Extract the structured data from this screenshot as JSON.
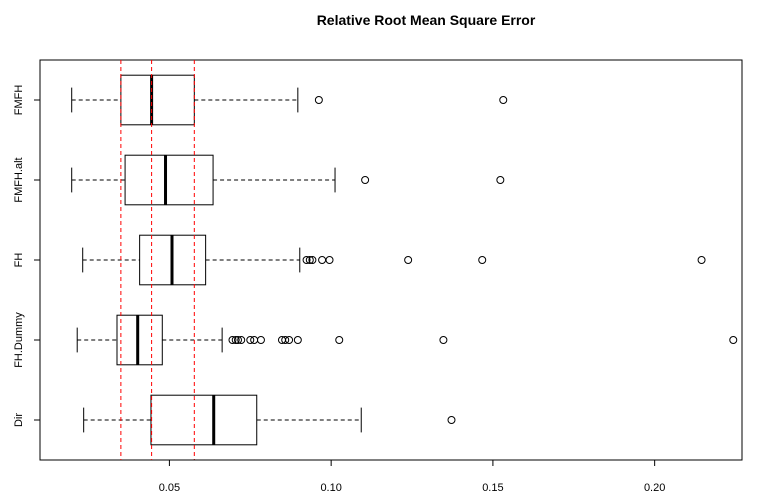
{
  "chart_data": {
    "type": "boxplot",
    "orientation": "horizontal",
    "title": "Relative Root Mean Square Error",
    "xlabel": "",
    "ylabel": "",
    "xlim": [
      0.01,
      0.227
    ],
    "x_ticks": [
      0.05,
      0.1,
      0.15,
      0.2
    ],
    "x_tick_labels": [
      "0.05",
      "0.10",
      "0.15",
      "0.20"
    ],
    "categories": [
      "Dir",
      "FH.Dummy",
      "FH",
      "FMFH.alt",
      "FMFH"
    ],
    "series": [
      {
        "name": "Dir",
        "whisker_low": 0.0235,
        "q1": 0.0443,
        "median": 0.0637,
        "q3": 0.077,
        "whisker_high": 0.1093,
        "outliers": [
          0.1372
        ]
      },
      {
        "name": "FH.Dummy",
        "whisker_low": 0.0215,
        "q1": 0.0338,
        "median": 0.0402,
        "q3": 0.0478,
        "whisker_high": 0.0663,
        "outliers": [
          0.0695,
          0.0705,
          0.0712,
          0.0722,
          0.075,
          0.0762,
          0.0783,
          0.0848,
          0.0858,
          0.087,
          0.0897,
          0.1025,
          0.1347,
          0.2243
        ]
      },
      {
        "name": "FH",
        "whisker_low": 0.0232,
        "q1": 0.0408,
        "median": 0.0508,
        "q3": 0.0612,
        "whisker_high": 0.0903,
        "outliers": [
          0.0924,
          0.0934,
          0.0942,
          0.0972,
          0.0995,
          0.1238,
          0.1467,
          0.2145
        ]
      },
      {
        "name": "FMFH.alt",
        "whisker_low": 0.0198,
        "q1": 0.0363,
        "median": 0.0488,
        "q3": 0.0635,
        "whisker_high": 0.1012,
        "outliers": [
          0.1105,
          0.1523
        ]
      },
      {
        "name": "FMFH",
        "whisker_low": 0.0198,
        "q1": 0.035,
        "median": 0.0445,
        "q3": 0.0577,
        "whisker_high": 0.0897,
        "outliers": [
          0.0962,
          0.1532
        ]
      }
    ],
    "reference_lines": [
      0.035,
      0.0445,
      0.0577
    ],
    "reference_line_color": "#ff0000",
    "grid": false,
    "legend": "none"
  }
}
